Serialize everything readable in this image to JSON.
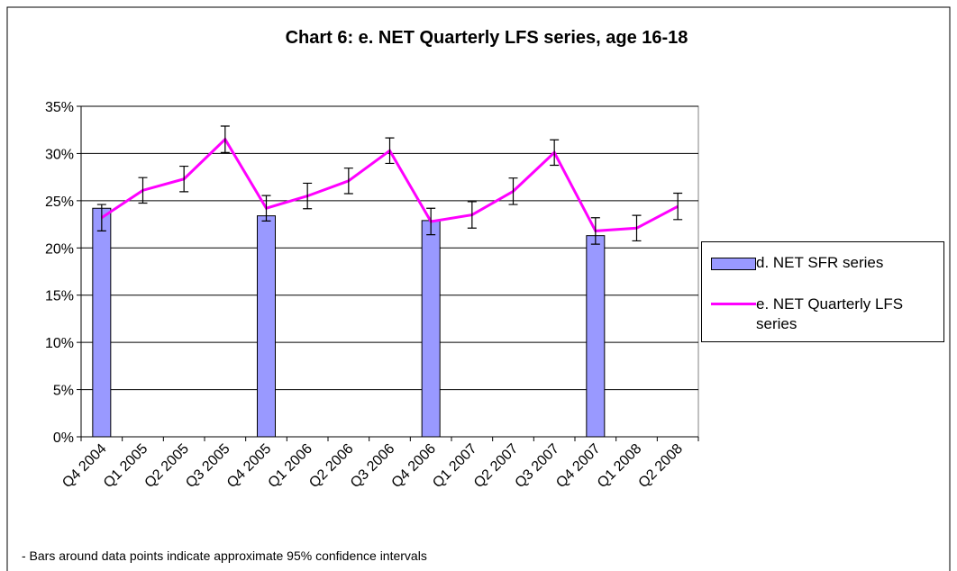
{
  "chart_data": {
    "type": "bar_line",
    "title": "Chart 6: e. NET Quarterly LFS series, age 16-18",
    "note": "- Bars around data points indicate approximate 95% confidence intervals",
    "categories": [
      "Q4 2004",
      "Q1 2005",
      "Q2 2005",
      "Q3 2005",
      "Q4 2005",
      "Q1 2006",
      "Q2 2006",
      "Q3 2006",
      "Q4 2006",
      "Q1 2007",
      "Q2 2007",
      "Q3 2007",
      "Q4 2007",
      "Q1 2008",
      "Q2 2008"
    ],
    "series": [
      {
        "name": "d. NET SFR series",
        "type": "bar",
        "color": "#9999ff",
        "values": [
          24.2,
          null,
          null,
          null,
          23.4,
          null,
          null,
          null,
          22.9,
          null,
          null,
          null,
          21.3,
          null,
          null
        ]
      },
      {
        "name": "e. NET Quarterly LFS series",
        "type": "line",
        "color": "#ff00ff",
        "values": [
          23.2,
          26.1,
          27.3,
          31.5,
          24.2,
          25.5,
          27.1,
          30.3,
          22.8,
          23.5,
          26.0,
          30.1,
          21.8,
          22.1,
          24.4
        ],
        "errors": [
          1.4,
          1.35,
          1.35,
          1.4,
          1.35,
          1.35,
          1.35,
          1.35,
          1.4,
          1.4,
          1.4,
          1.35,
          1.4,
          1.35,
          1.4
        ]
      }
    ],
    "ylim": [
      0,
      35
    ],
    "yticks": [
      {
        "value": 0,
        "label": "0%"
      },
      {
        "value": 5,
        "label": "5%"
      },
      {
        "value": 10,
        "label": "10%"
      },
      {
        "value": 15,
        "label": "15%"
      },
      {
        "value": 20,
        "label": "20%"
      },
      {
        "value": 25,
        "label": "25%"
      },
      {
        "value": 30,
        "label": "30%"
      },
      {
        "value": 35,
        "label": "35%"
      }
    ],
    "grid": true,
    "legend": "right"
  }
}
